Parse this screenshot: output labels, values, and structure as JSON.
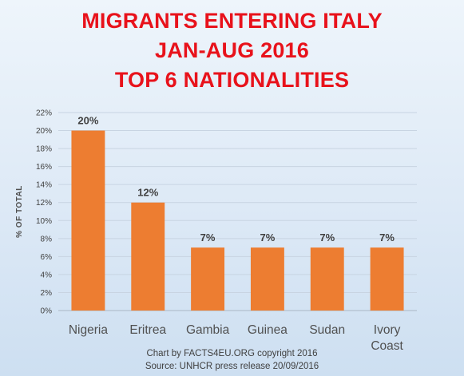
{
  "title_lines": [
    "MIGRANTS ENTERING ITALY",
    "JAN-AUG 2016",
    "TOP 6 NATIONALITIES"
  ],
  "footer": {
    "credit": "Chart by FACTS4EU.ORG copyright 2016",
    "source": "Source: UNHCR press release 20/09/2016"
  },
  "colors": {
    "title": "#e8121b",
    "bar": "#ed7d31",
    "gridline": "#c8d4e2"
  },
  "chart_data": {
    "type": "bar",
    "title": "MIGRANTS ENTERING ITALY JAN-AUG 2016 TOP 6 NATIONALITIES",
    "xlabel": "",
    "ylabel": "% OF TOTAL",
    "categories": [
      [
        "Nigeria"
      ],
      [
        "Eritrea"
      ],
      [
        "Gambia"
      ],
      [
        "Guinea"
      ],
      [
        "Sudan"
      ],
      [
        "Ivory",
        "Coast"
      ]
    ],
    "values": [
      20,
      12,
      7,
      7,
      7,
      7
    ],
    "data_labels": [
      "20%",
      "12%",
      "7%",
      "7%",
      "7%",
      "7%"
    ],
    "ylim": [
      0,
      22
    ],
    "yticks": [
      0,
      2,
      4,
      6,
      8,
      10,
      12,
      14,
      16,
      18,
      20,
      22
    ],
    "ytick_labels": [
      "0%",
      "2%",
      "4%",
      "6%",
      "8%",
      "10%",
      "12%",
      "14%",
      "16%",
      "18%",
      "20%",
      "22%"
    ],
    "grid": true,
    "legend": "none"
  }
}
